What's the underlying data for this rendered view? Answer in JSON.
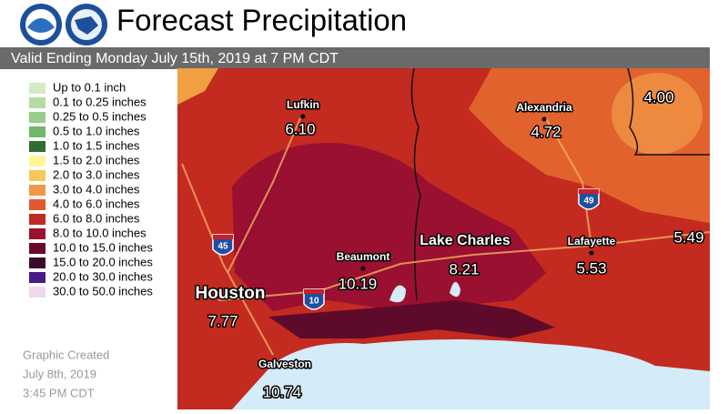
{
  "header": {
    "title": "Forecast Precipitation",
    "subtitle": "Valid Ending Monday July 15th, 2019 at 7 PM CDT"
  },
  "legend": [
    {
      "label": "Up to 0.1 inch",
      "color": "#d3ecc4"
    },
    {
      "label": "0.1 to 0.25 inches",
      "color": "#b4dca0"
    },
    {
      "label": "0.25 to 0.5 inches",
      "color": "#98cf88"
    },
    {
      "label": "0.5 to 1.0 inches",
      "color": "#6fb86a"
    },
    {
      "label": "1.0 to 1.5 inches",
      "color": "#2f6e2e"
    },
    {
      "label": "1.5 to 2.0 inches",
      "color": "#fff59a"
    },
    {
      "label": "2.0 to 3.0 inches",
      "color": "#f6c85a"
    },
    {
      "label": "3.0 to 4.0 inches",
      "color": "#f0984a"
    },
    {
      "label": "4.0 to 6.0 inches",
      "color": "#e2582c"
    },
    {
      "label": "6.0 to 8.0 inches",
      "color": "#c02a22"
    },
    {
      "label": "8.0 to 10.0 inches",
      "color": "#9a1030"
    },
    {
      "label": "10.0 to 15.0 inches",
      "color": "#6a0a2a"
    },
    {
      "label": "15.0 to 20.0 inches",
      "color": "#3a0a2a"
    },
    {
      "label": "20.0 to 30.0 inches",
      "color": "#4a1a8a"
    },
    {
      "label": "30.0 to 50.0 inches",
      "color": "#f0d8f0"
    }
  ],
  "created": [
    "Graphic Created",
    "July 8th, 2019",
    "3:45 PM CDT"
  ],
  "places": [
    {
      "name": "Lufkin",
      "amount": "6.10"
    },
    {
      "name": "Alexandria",
      "amount": "4.72"
    },
    {
      "amount": "4.00"
    },
    {
      "name": "Lake Charles",
      "amount": "8.21"
    },
    {
      "name": "Lafayette",
      "amount": "5.53"
    },
    {
      "amount": "5.49"
    },
    {
      "name": "Beaumont",
      "amount": "10.19"
    },
    {
      "name": "Houston",
      "amount": "7.77"
    },
    {
      "name": "Galveston",
      "amount": "10.74"
    }
  ],
  "interstates": [
    "45",
    "10",
    "49"
  ]
}
